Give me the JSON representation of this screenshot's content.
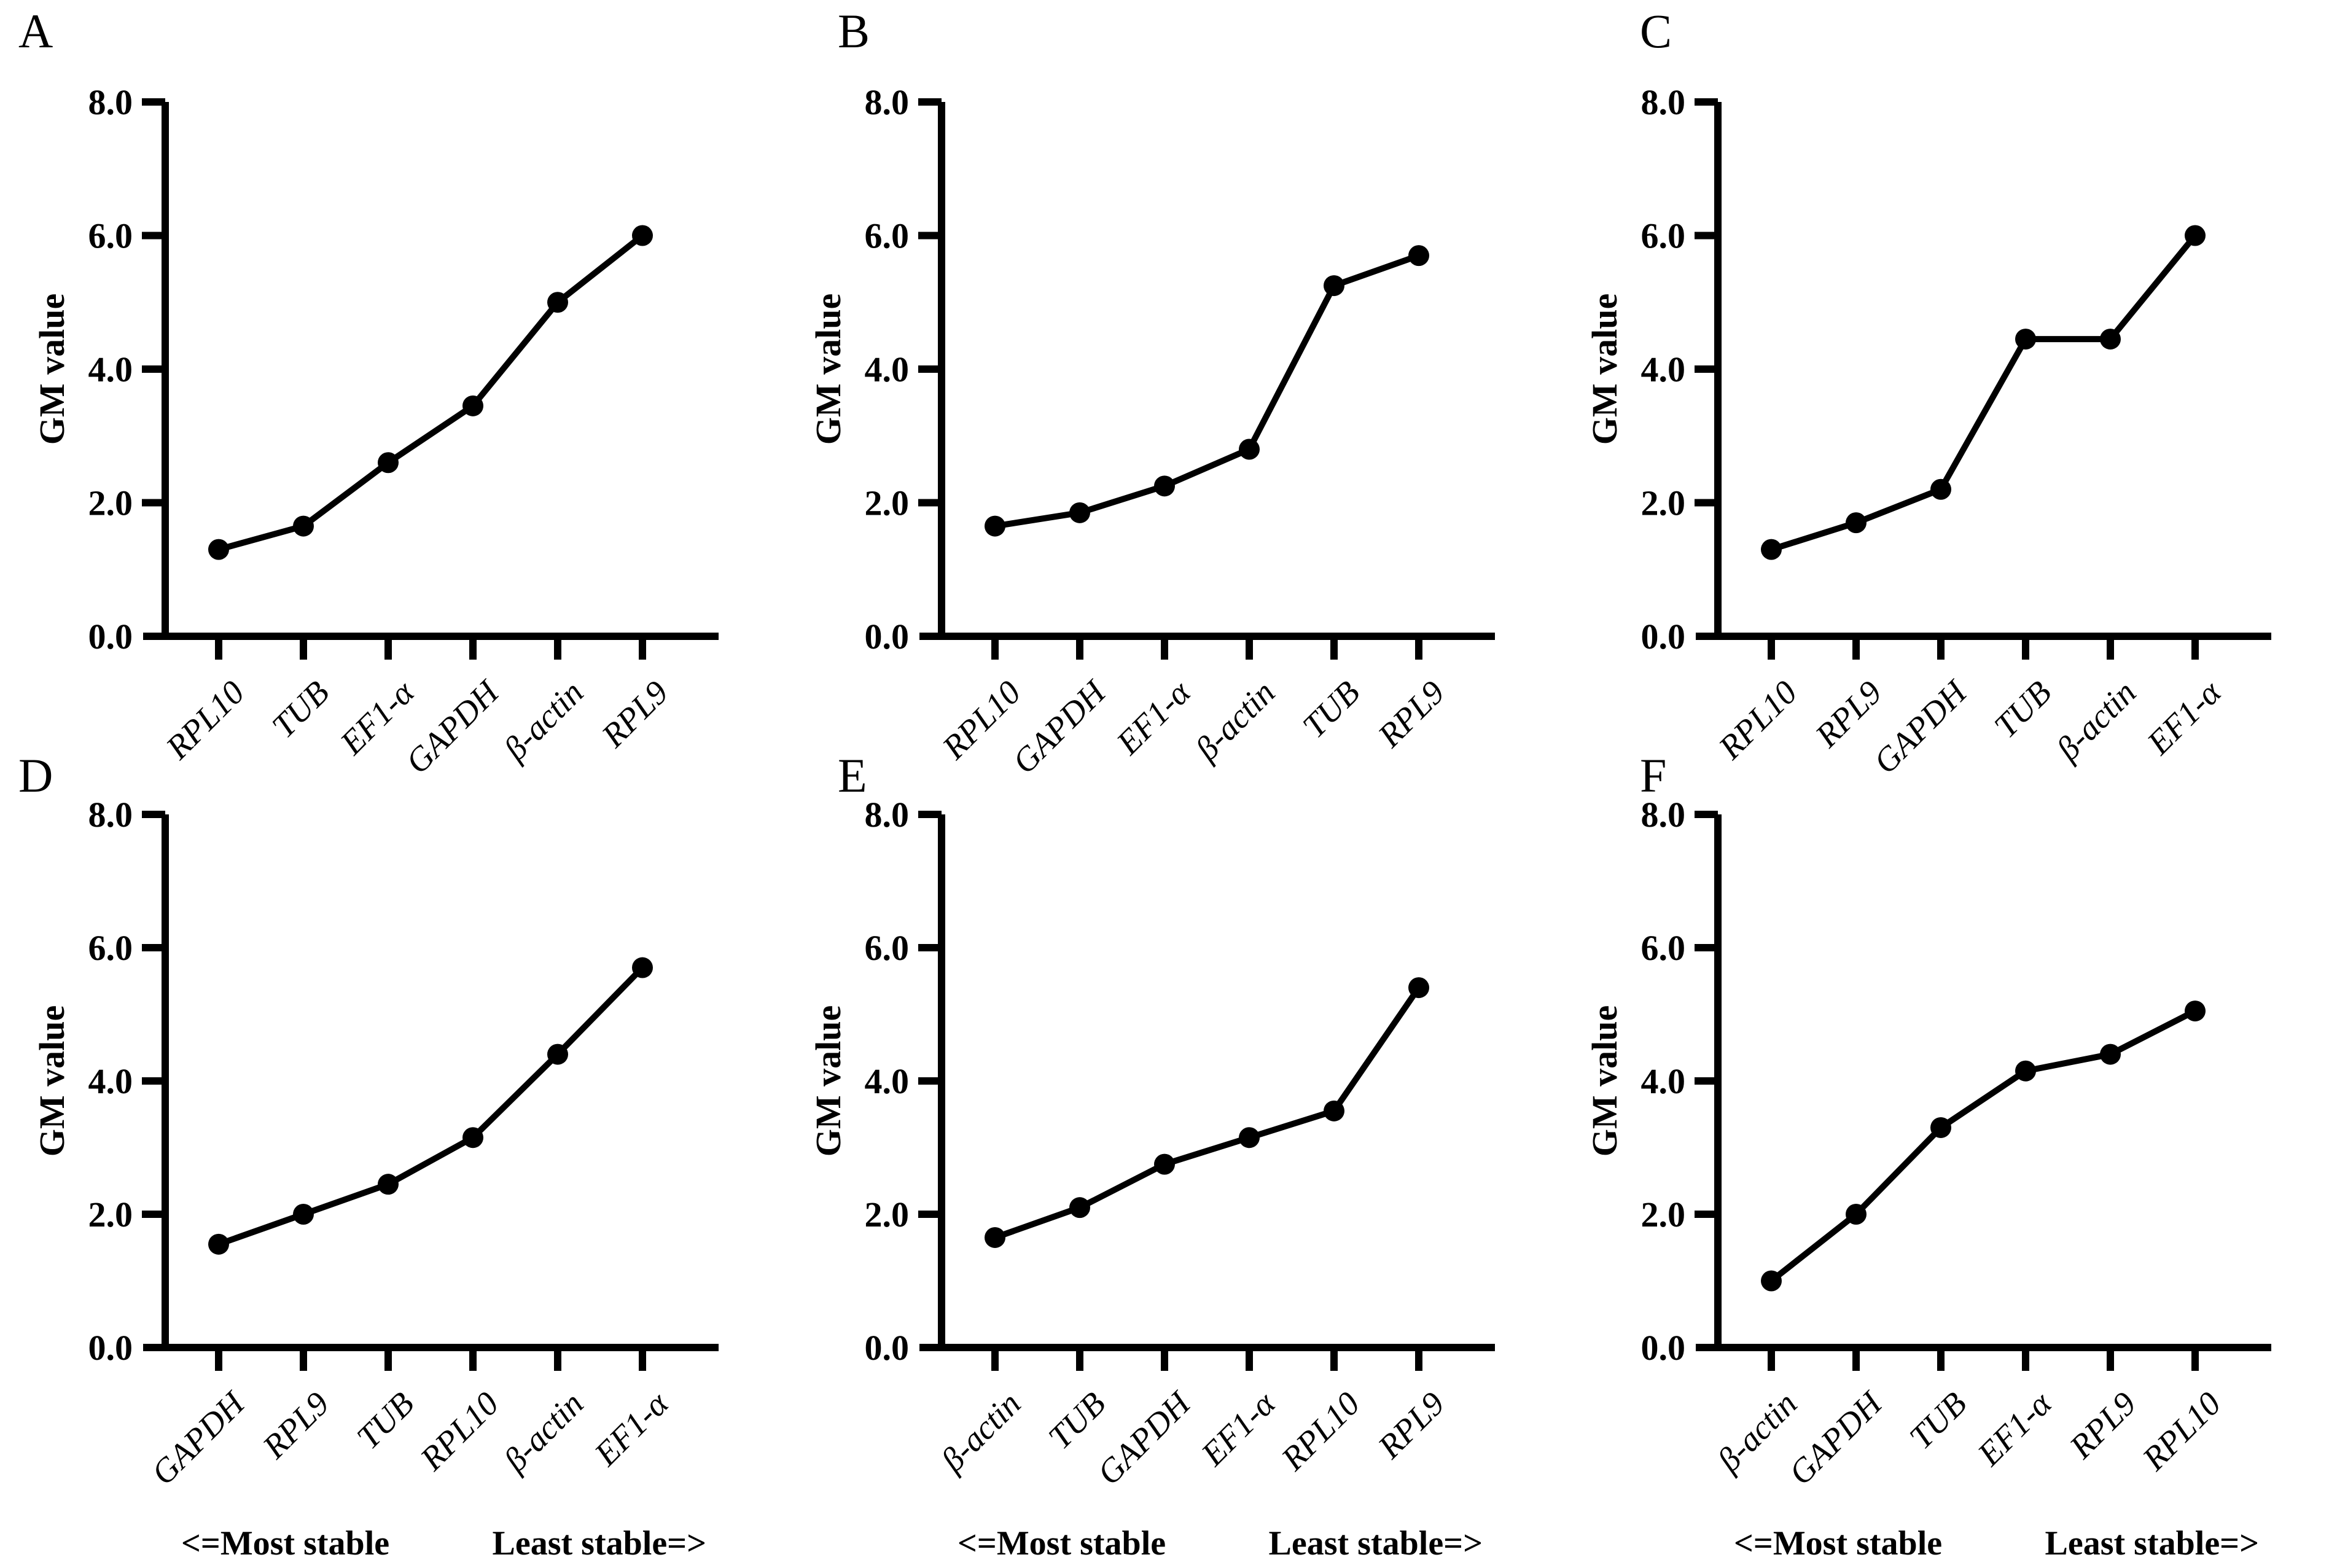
{
  "page": {
    "background": "#ffffff",
    "ink": "#000000"
  },
  "footer": {
    "most_stable": "<=Most stable",
    "least_stable": "Least stable=>"
  },
  "chart_data": [
    {
      "panel": "A",
      "type": "line",
      "ylabel": "GM value",
      "ylim": [
        0,
        8
      ],
      "ytick_values": [
        0,
        2,
        4,
        6,
        8
      ],
      "ytick_labels": [
        "0.0",
        "2.0",
        "4.0",
        "6.0",
        "8.0"
      ],
      "categories": [
        "RPL10",
        "TUB",
        "EF1-α",
        "GAPDH",
        "β-actin",
        "RPL9"
      ],
      "values": [
        1.3,
        1.65,
        2.6,
        3.45,
        5.0,
        6.0
      ],
      "grid": false,
      "legend": "none",
      "has_footer": false
    },
    {
      "panel": "B",
      "type": "line",
      "ylabel": "GM value",
      "ylim": [
        0,
        8
      ],
      "ytick_values": [
        0,
        2,
        4,
        6,
        8
      ],
      "ytick_labels": [
        "0.0",
        "2.0",
        "4.0",
        "6.0",
        "8.0"
      ],
      "categories": [
        "RPL10",
        "GAPDH",
        "EF1-α",
        "β-actin",
        "TUB",
        "RPL9"
      ],
      "values": [
        1.65,
        1.85,
        2.25,
        2.8,
        5.25,
        5.7
      ],
      "grid": false,
      "legend": "none",
      "has_footer": false
    },
    {
      "panel": "C",
      "type": "line",
      "ylabel": "GM value",
      "ylim": [
        0,
        8
      ],
      "ytick_values": [
        0,
        2,
        4,
        6,
        8
      ],
      "ytick_labels": [
        "0.0",
        "2.0",
        "4.0",
        "6.0",
        "8.0"
      ],
      "categories": [
        "RPL10",
        "RPL9",
        "GAPDH",
        "TUB",
        "β-actin",
        "EF1-α"
      ],
      "values": [
        1.3,
        1.7,
        2.2,
        4.45,
        4.45,
        6.0
      ],
      "grid": false,
      "legend": "none",
      "has_footer": false
    },
    {
      "panel": "D",
      "type": "line",
      "ylabel": "GM value",
      "ylim": [
        0,
        8
      ],
      "ytick_values": [
        0,
        2,
        4,
        6,
        8
      ],
      "ytick_labels": [
        "0.0",
        "2.0",
        "4.0",
        "6.0",
        "8.0"
      ],
      "categories": [
        "GAPDH",
        "RPL9",
        "TUB",
        "RPL10",
        "β-actin",
        "EF1-α"
      ],
      "values": [
        1.55,
        2.0,
        2.45,
        3.15,
        4.4,
        5.7
      ],
      "grid": false,
      "legend": "none",
      "has_footer": true
    },
    {
      "panel": "E",
      "type": "line",
      "ylabel": "GM value",
      "ylim": [
        0,
        8
      ],
      "ytick_values": [
        0,
        2,
        4,
        6,
        8
      ],
      "ytick_labels": [
        "0.0",
        "2.0",
        "4.0",
        "6.0",
        "8.0"
      ],
      "categories": [
        "β-actin",
        "TUB",
        "GAPDH",
        "EF1-α",
        "RPL10",
        "RPL9"
      ],
      "values": [
        1.65,
        2.1,
        2.75,
        3.15,
        3.55,
        5.4
      ],
      "grid": false,
      "legend": "none",
      "has_footer": true
    },
    {
      "panel": "F",
      "type": "line",
      "ylabel": "GM value",
      "ylim": [
        0,
        8
      ],
      "ytick_values": [
        0,
        2,
        4,
        6,
        8
      ],
      "ytick_labels": [
        "0.0",
        "2.0",
        "4.0",
        "6.0",
        "8.0"
      ],
      "categories": [
        "β-actin",
        "GAPDH",
        "TUB",
        "EF1-α",
        "RPL9",
        "RPL10"
      ],
      "values": [
        1.0,
        2.0,
        3.3,
        4.15,
        4.4,
        5.05
      ],
      "grid": false,
      "legend": "none",
      "has_footer": true
    }
  ]
}
